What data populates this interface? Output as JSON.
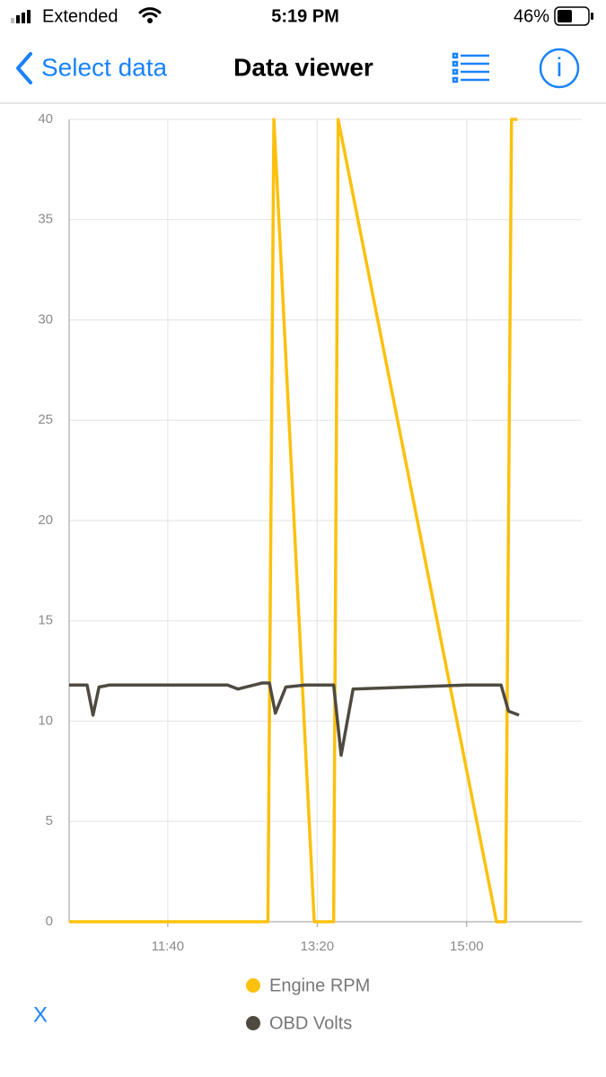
{
  "status_bar": {
    "carrier": "Extended",
    "time": "5:19 PM",
    "battery": "46%"
  },
  "nav_bar": {
    "back": "Select data",
    "title": "Data viewer"
  },
  "chart_data": {
    "type": "line",
    "xlim": [
      634,
      977
    ],
    "xticks": [
      {
        "value": 700,
        "label": "11:40"
      },
      {
        "value": 800,
        "label": "13:20"
      },
      {
        "value": 900,
        "label": "15:00"
      }
    ],
    "ylim": [
      0,
      40
    ],
    "yticks": [
      0,
      5,
      10,
      15,
      20,
      25,
      30,
      35,
      40
    ],
    "grid": true,
    "series": [
      {
        "name": "Engine RPM",
        "color": "#fcc10e",
        "x": [
          634,
          767,
          771,
          798,
          811,
          814,
          920,
          926,
          930,
          934
        ],
        "values": [
          0,
          0,
          40,
          0,
          0,
          40,
          0,
          0,
          40,
          40
        ]
      },
      {
        "name": "OBD Volts",
        "color": "#4f4a40",
        "x": [
          634,
          646,
          650,
          654,
          661,
          740,
          747,
          763,
          768,
          772,
          779,
          792,
          811,
          816,
          824,
          900,
          923,
          928,
          935
        ],
        "values": [
          11.8,
          11.8,
          10.3,
          11.7,
          11.8,
          11.8,
          11.6,
          11.9,
          11.9,
          10.4,
          11.7,
          11.8,
          11.8,
          8.3,
          11.6,
          11.8,
          11.8,
          10.5,
          10.3
        ]
      }
    ]
  },
  "footer": {
    "close": "X"
  }
}
